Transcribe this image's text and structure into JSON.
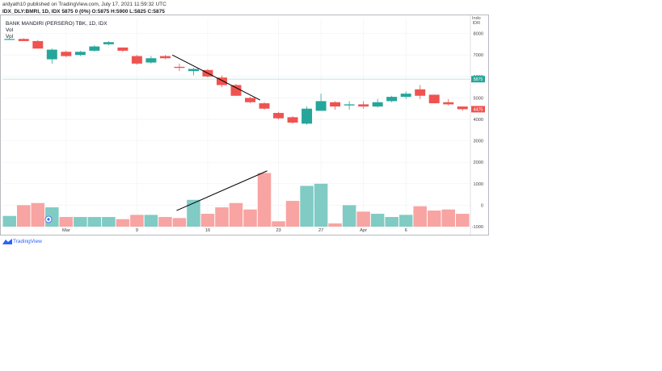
{
  "header": {
    "published_line": "ardyath10 published on TradingView.com, July 17, 2021 11:59:32 UTC",
    "ohlc_line": "IDX_DLY:BMRI, 1D, IDX  5875 0 (0%) O:5875 H:5900 L:5825 C:5875"
  },
  "legend": {
    "symbol": "BANK MANDIRI (PERSERO) TBK, 1D, IDX",
    "vol1": "Vol",
    "vol2": "Vol"
  },
  "currency_label": [
    "Indo",
    "IDR"
  ],
  "footer": {
    "brand": "TradingView"
  },
  "colors": {
    "up": "#26a69a",
    "down": "#ef5350",
    "vol_up": "#80cbc4",
    "vol_down": "#f7a4a2",
    "grid": "#eef0f3",
    "price_line": "#a7e0d6"
  },
  "chart_data": {
    "type": "candlestick",
    "price_axis": {
      "ticks": [
        8000,
        7000,
        6000,
        5000,
        4000,
        3000,
        2000,
        1000,
        0,
        -1000
      ],
      "range": [
        -1300,
        8700
      ]
    },
    "x_labels": [
      {
        "index": 4,
        "text": "Mar"
      },
      {
        "index": 9,
        "text": "9"
      },
      {
        "index": 14,
        "text": "16"
      },
      {
        "index": 19,
        "text": "23"
      },
      {
        "index": 22,
        "text": "27"
      },
      {
        "index": 25,
        "text": "Apr"
      },
      {
        "index": 28,
        "text": "6"
      }
    ],
    "current_price": {
      "value": 5875,
      "label": "5875"
    },
    "last_label": {
      "value": 4475,
      "label": "4475"
    },
    "volume_base": -1000,
    "candles": [
      {
        "o": 7750,
        "h": 7800,
        "l": 7700,
        "c": 7750,
        "dir": "up",
        "v": -500
      },
      {
        "o": 7750,
        "h": 7780,
        "l": 7650,
        "c": 7650,
        "dir": "down",
        "v": 0
      },
      {
        "o": 7650,
        "h": 7700,
        "l": 7300,
        "c": 7300,
        "dir": "down",
        "v": 100
      },
      {
        "o": 6800,
        "h": 7300,
        "l": 6600,
        "c": 7250,
        "dir": "up",
        "v": -100
      },
      {
        "o": 7150,
        "h": 7200,
        "l": 6900,
        "c": 6950,
        "dir": "down",
        "v": -550
      },
      {
        "o": 7000,
        "h": 7200,
        "l": 6950,
        "c": 7150,
        "dir": "up",
        "v": -550
      },
      {
        "o": 7200,
        "h": 7450,
        "l": 7150,
        "c": 7400,
        "dir": "up",
        "v": -550
      },
      {
        "o": 7500,
        "h": 7650,
        "l": 7450,
        "c": 7600,
        "dir": "up",
        "v": -550
      },
      {
        "o": 7350,
        "h": 7350,
        "l": 7150,
        "c": 7200,
        "dir": "down",
        "v": -650
      },
      {
        "o": 6950,
        "h": 7000,
        "l": 6550,
        "c": 6600,
        "dir": "down",
        "v": -450
      },
      {
        "o": 6650,
        "h": 6950,
        "l": 6600,
        "c": 6850,
        "dir": "up",
        "v": -450
      },
      {
        "o": 6950,
        "h": 7000,
        "l": 6800,
        "c": 6850,
        "dir": "down",
        "v": -550
      },
      {
        "o": 6450,
        "h": 6600,
        "l": 6250,
        "c": 6400,
        "dir": "down",
        "v": -600
      },
      {
        "o": 6250,
        "h": 6400,
        "l": 6050,
        "c": 6350,
        "dir": "up",
        "v": 250
      },
      {
        "o": 6300,
        "h": 6350,
        "l": 5950,
        "c": 6000,
        "dir": "down",
        "v": -400
      },
      {
        "o": 5950,
        "h": 6050,
        "l": 5500,
        "c": 5600,
        "dir": "down",
        "v": -100
      },
      {
        "o": 5600,
        "h": 5650,
        "l": 5100,
        "c": 5100,
        "dir": "down",
        "v": 100
      },
      {
        "o": 5000,
        "h": 5050,
        "l": 4750,
        "c": 4800,
        "dir": "down",
        "v": -200
      },
      {
        "o": 4750,
        "h": 4800,
        "l": 4450,
        "c": 4500,
        "dir": "down",
        "v": 1500
      },
      {
        "o": 4300,
        "h": 4350,
        "l": 4000,
        "c": 4050,
        "dir": "down",
        "v": -750
      },
      {
        "o": 4100,
        "h": 4150,
        "l": 3800,
        "c": 3850,
        "dir": "down",
        "v": 200
      },
      {
        "o": 3800,
        "h": 4600,
        "l": 3750,
        "c": 4500,
        "dir": "up",
        "v": 900
      },
      {
        "o": 4400,
        "h": 5200,
        "l": 4400,
        "c": 4850,
        "dir": "up",
        "v": 1000
      },
      {
        "o": 4800,
        "h": 4850,
        "l": 4450,
        "c": 4600,
        "dir": "down",
        "v": -850
      },
      {
        "o": 4650,
        "h": 4850,
        "l": 4450,
        "c": 4700,
        "dir": "up",
        "v": 0
      },
      {
        "o": 4700,
        "h": 4850,
        "l": 4500,
        "c": 4600,
        "dir": "down",
        "v": -300
      },
      {
        "o": 4600,
        "h": 4950,
        "l": 4550,
        "c": 4800,
        "dir": "up",
        "v": -400
      },
      {
        "o": 4850,
        "h": 5100,
        "l": 4800,
        "c": 5050,
        "dir": "up",
        "v": -550
      },
      {
        "o": 5050,
        "h": 5300,
        "l": 4950,
        "c": 5200,
        "dir": "up",
        "v": -450
      },
      {
        "o": 5400,
        "h": 5600,
        "l": 4950,
        "c": 5100,
        "dir": "down",
        "v": -50
      },
      {
        "o": 5150,
        "h": 5150,
        "l": 4750,
        "c": 4750,
        "dir": "down",
        "v": -250
      },
      {
        "o": 4800,
        "h": 4950,
        "l": 4650,
        "c": 4700,
        "dir": "down",
        "v": -200
      },
      {
        "o": 4600,
        "h": 4600,
        "l": 4400,
        "c": 4475,
        "dir": "down",
        "v": -400
      }
    ],
    "trend_lines": [
      {
        "pane": "price",
        "from": {
          "index": 11.5,
          "value": 7000
        },
        "to": {
          "index": 17.7,
          "value": 4900
        }
      },
      {
        "pane": "volume",
        "from": {
          "index": 11.8,
          "value": -250
        },
        "to": {
          "index": 18.2,
          "value": 1600
        }
      }
    ]
  }
}
